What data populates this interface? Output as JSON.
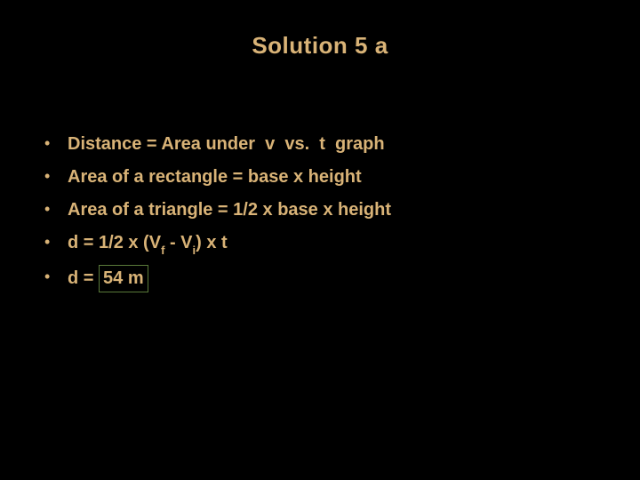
{
  "slide": {
    "title": "Solution 5 a",
    "title_color": "#d9b377",
    "text_color": "#d9b377",
    "background_color": "#000000",
    "answer_box_border_color": "#5a7a3a",
    "bullets": [
      {
        "text": "Distance = Area under  v  vs.  t  graph"
      },
      {
        "text": "Area of a rectangle = base x height"
      },
      {
        "text": "Area of a triangle = 1/2 x base x height"
      },
      {
        "prefix": "d = 1/2 x (V",
        "sub1": "f",
        "mid": " - V",
        "sub2": "i",
        "suffix": ") x t"
      },
      {
        "prefix": "d = ",
        "boxed": "54 m"
      }
    ]
  }
}
